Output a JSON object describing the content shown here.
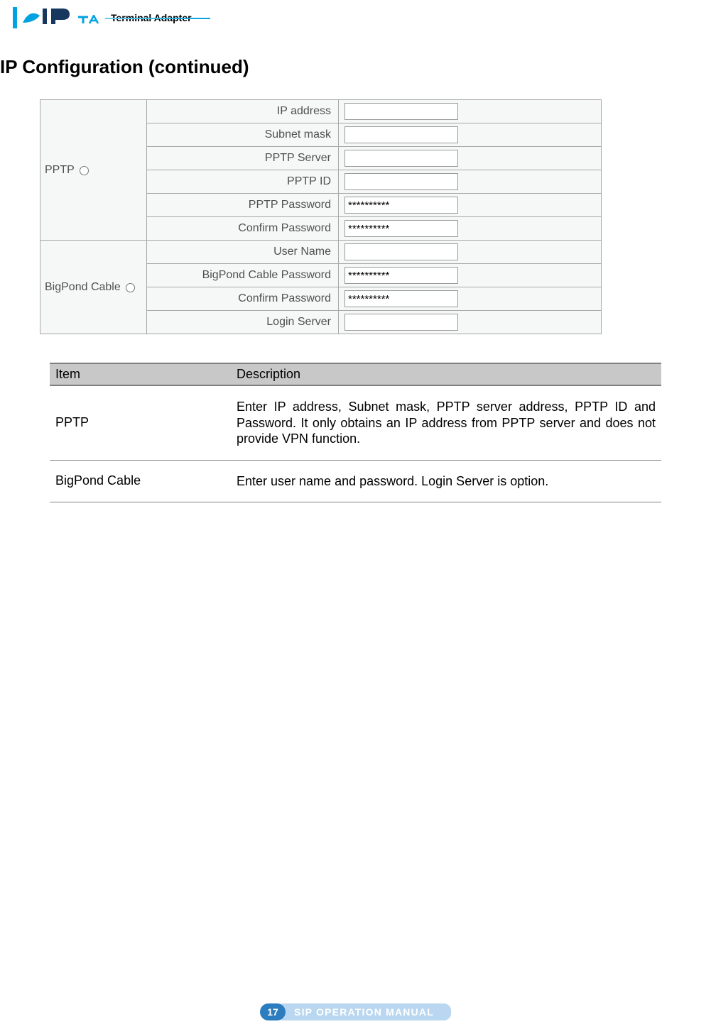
{
  "header": {
    "product_label": "Terminal Adapter",
    "logo_accent_color": "#00a2e0",
    "logo_dark_color": "#17375e"
  },
  "heading": "IP Configuration (continued)",
  "config_form": {
    "sections": [
      {
        "section_label": "PPTP",
        "radio_checked": false,
        "fields": [
          {
            "label": "IP address",
            "value": "",
            "type": "text"
          },
          {
            "label": "Subnet mask",
            "value": "",
            "type": "text"
          },
          {
            "label": "PPTP Server",
            "value": "",
            "type": "text"
          },
          {
            "label": "PPTP ID",
            "value": "",
            "type": "text"
          },
          {
            "label": "PPTP Password",
            "value": "**********",
            "type": "password"
          },
          {
            "label": "Confirm Password",
            "value": "**********",
            "type": "password"
          }
        ]
      },
      {
        "section_label": "BigPond Cable",
        "radio_checked": false,
        "fields": [
          {
            "label": "User Name",
            "value": "",
            "type": "text"
          },
          {
            "label": "BigPond Cable Password",
            "value": "**********",
            "type": "password"
          },
          {
            "label": "Confirm Password",
            "value": "**********",
            "type": "password"
          },
          {
            "label": "Login Server",
            "value": "",
            "type": "text"
          }
        ]
      }
    ],
    "colors": {
      "cell_bg": "#f6f7f7",
      "border": "#a7a7a7",
      "text": "#505050",
      "input_border": "#9a9a9a",
      "input_bg": "#ffffff"
    }
  },
  "desc_table": {
    "header": {
      "col1": "Item",
      "col2": "Description"
    },
    "rows": [
      {
        "item": "PPTP",
        "description": "Enter IP address, Subnet mask, PPTP server address, PPTP ID and Password. It only obtains an IP address from PPTP server and does not provide VPN function."
      },
      {
        "item": "BigPond Cable",
        "description": "Enter user name and password. Login Server is option."
      }
    ],
    "colors": {
      "header_bg": "#c8c8c8",
      "header_border": "#808080",
      "row_border": "#808080"
    }
  },
  "footer": {
    "page_number": "17",
    "title": "SIP OPERATION MANUAL",
    "badge_color": "#2b7dbf",
    "bar_color": "#b9d7f0",
    "text_color": "#ffffff"
  }
}
